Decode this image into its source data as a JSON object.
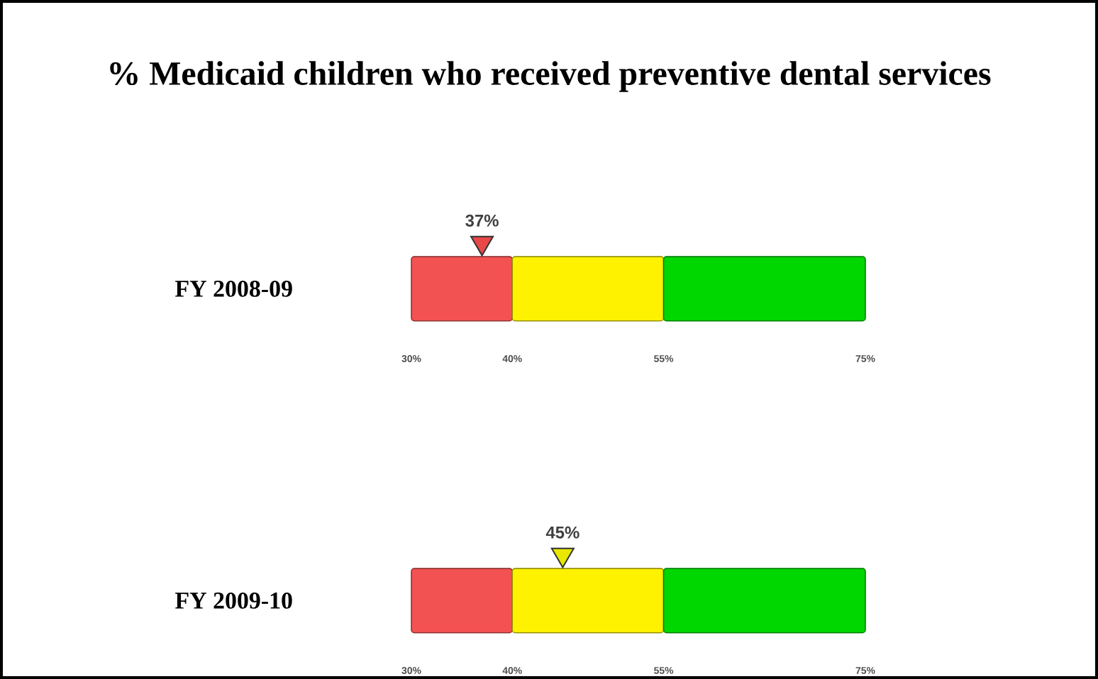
{
  "chart_data": [
    {
      "type": "scatter",
      "title": "% Medicaid children who received preventive dental services",
      "orientation": "horizontal",
      "categories": [
        "FY 2008-09"
      ],
      "values": [
        37
      ],
      "value_labels": [
        "37%"
      ],
      "color": "#e84848",
      "marker": "triangle",
      "xlim": [
        30,
        75
      ],
      "xticks": [
        {
          "value": 30,
          "label": "30%"
        },
        {
          "value": 40,
          "label": "40%"
        },
        {
          "value": 55,
          "label": "55%"
        },
        {
          "value": 75,
          "label": "75%"
        }
      ],
      "bands": [
        {
          "axis": "x",
          "from": 30,
          "to": 40,
          "color": "#f25252"
        },
        {
          "axis": "x",
          "from": 40,
          "to": 55,
          "color": "#fff200"
        },
        {
          "axis": "x",
          "from": 55,
          "to": 75,
          "color": "#00d600"
        }
      ]
    },
    {
      "type": "scatter",
      "orientation": "horizontal",
      "categories": [
        "FY 2009-10"
      ],
      "values": [
        45
      ],
      "value_labels": [
        "45%"
      ],
      "color": "#e8e800",
      "marker": "triangle",
      "xlim": [
        30,
        75
      ],
      "xticks": [
        {
          "value": 30,
          "label": "30%"
        },
        {
          "value": 40,
          "label": "40%"
        },
        {
          "value": 55,
          "label": "55%"
        },
        {
          "value": 75,
          "label": "75%"
        }
      ],
      "bands": [
        {
          "axis": "x",
          "from": 30,
          "to": 40,
          "color": "#f25252"
        },
        {
          "axis": "x",
          "from": 40,
          "to": 55,
          "color": "#fff200"
        },
        {
          "axis": "x",
          "from": 55,
          "to": 75,
          "color": "#00d600"
        }
      ]
    }
  ]
}
